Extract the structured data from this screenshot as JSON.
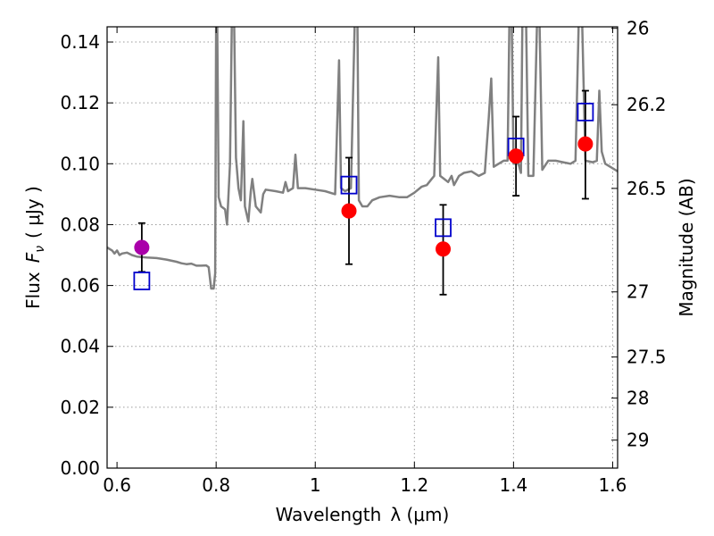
{
  "chart_data": {
    "type": "scatter",
    "title": "",
    "xlabel": "Wavelength",
    "xlabel_math": "λ (μm)",
    "ylabel": "Flux",
    "ylabel_math": "F",
    "ylabel_sub": "ν",
    "ylabel_unit": "( μJy )",
    "y2label": "Magnitude (AB)",
    "xlim": [
      0.58,
      1.61
    ],
    "ylim": [
      0.0,
      0.145
    ],
    "grid": true,
    "x_ticks": [
      0.6,
      0.8,
      1.0,
      1.2,
      1.4,
      1.6
    ],
    "x_tick_labels": [
      "0.6",
      "0.8",
      "1",
      "1.2",
      "1.4",
      "1.6"
    ],
    "y_ticks": [
      0.0,
      0.02,
      0.04,
      0.06,
      0.08,
      0.1,
      0.12,
      0.14
    ],
    "y_tick_labels": [
      "0.00",
      "0.02",
      "0.04",
      "0.06",
      "0.08",
      "0.10",
      "0.12",
      "0.14"
    ],
    "y2_ticks": [
      {
        "flux": 0.1445,
        "label": "26"
      },
      {
        "flux": 0.1194,
        "label": "26.2"
      },
      {
        "flux": 0.0919,
        "label": "26.5"
      },
      {
        "flux": 0.0579,
        "label": "27"
      },
      {
        "flux": 0.0365,
        "label": "27.5"
      },
      {
        "flux": 0.023,
        "label": "28"
      },
      {
        "flux": 0.0092,
        "label": "29"
      }
    ],
    "colors": {
      "model": "#808080",
      "observed": "#ff0000",
      "observed_alt": "#aa00aa",
      "model_photometry": "#0000cc",
      "errorbar": "#000000",
      "grid": "#9a9a9a"
    },
    "series": [
      {
        "name": "model spectrum",
        "kind": "line",
        "points": [
          [
            0.58,
            0.0725
          ],
          [
            0.59,
            0.0715
          ],
          [
            0.595,
            0.0705
          ],
          [
            0.6,
            0.0715
          ],
          [
            0.605,
            0.07
          ],
          [
            0.61,
            0.0705
          ],
          [
            0.62,
            0.0708
          ],
          [
            0.63,
            0.07
          ],
          [
            0.64,
            0.0695
          ],
          [
            0.66,
            0.0692
          ],
          [
            0.68,
            0.069
          ],
          [
            0.7,
            0.0685
          ],
          [
            0.72,
            0.0678
          ],
          [
            0.73,
            0.0673
          ],
          [
            0.74,
            0.067
          ],
          [
            0.75,
            0.0672
          ],
          [
            0.76,
            0.0665
          ],
          [
            0.77,
            0.0665
          ],
          [
            0.78,
            0.0666
          ],
          [
            0.785,
            0.066
          ],
          [
            0.79,
            0.059
          ],
          [
            0.795,
            0.059
          ],
          [
            0.798,
            0.064
          ],
          [
            0.8,
            0.15
          ],
          [
            0.802,
            0.15
          ],
          [
            0.805,
            0.089
          ],
          [
            0.81,
            0.086
          ],
          [
            0.818,
            0.085
          ],
          [
            0.822,
            0.08
          ],
          [
            0.828,
            0.1
          ],
          [
            0.832,
            0.15
          ],
          [
            0.836,
            0.15
          ],
          [
            0.84,
            0.102
          ],
          [
            0.845,
            0.092
          ],
          [
            0.85,
            0.088
          ],
          [
            0.855,
            0.114
          ],
          [
            0.858,
            0.086
          ],
          [
            0.865,
            0.081
          ],
          [
            0.87,
            0.091
          ],
          [
            0.873,
            0.095
          ],
          [
            0.88,
            0.086
          ],
          [
            0.89,
            0.084
          ],
          [
            0.895,
            0.09
          ],
          [
            0.9,
            0.0915
          ],
          [
            0.92,
            0.091
          ],
          [
            0.935,
            0.0905
          ],
          [
            0.94,
            0.094
          ],
          [
            0.945,
            0.091
          ],
          [
            0.955,
            0.092
          ],
          [
            0.96,
            0.103
          ],
          [
            0.965,
            0.092
          ],
          [
            0.98,
            0.092
          ],
          [
            1.0,
            0.0915
          ],
          [
            1.02,
            0.091
          ],
          [
            1.04,
            0.09
          ],
          [
            1.048,
            0.134
          ],
          [
            1.052,
            0.092
          ],
          [
            1.06,
            0.091
          ],
          [
            1.072,
            0.092
          ],
          [
            1.08,
            0.15
          ],
          [
            1.085,
            0.15
          ],
          [
            1.088,
            0.088
          ],
          [
            1.095,
            0.086
          ],
          [
            1.105,
            0.086
          ],
          [
            1.115,
            0.088
          ],
          [
            1.13,
            0.089
          ],
          [
            1.15,
            0.0895
          ],
          [
            1.17,
            0.089
          ],
          [
            1.185,
            0.089
          ],
          [
            1.2,
            0.0905
          ],
          [
            1.215,
            0.0925
          ],
          [
            1.225,
            0.093
          ],
          [
            1.235,
            0.095
          ],
          [
            1.24,
            0.096
          ],
          [
            1.248,
            0.135
          ],
          [
            1.252,
            0.096
          ],
          [
            1.26,
            0.095
          ],
          [
            1.268,
            0.094
          ],
          [
            1.275,
            0.096
          ],
          [
            1.28,
            0.093
          ],
          [
            1.29,
            0.096
          ],
          [
            1.3,
            0.097
          ],
          [
            1.315,
            0.0975
          ],
          [
            1.33,
            0.096
          ],
          [
            1.342,
            0.097
          ],
          [
            1.35,
            0.115
          ],
          [
            1.355,
            0.128
          ],
          [
            1.36,
            0.099
          ],
          [
            1.37,
            0.1
          ],
          [
            1.38,
            0.101
          ],
          [
            1.388,
            0.101
          ],
          [
            1.392,
            0.15
          ],
          [
            1.396,
            0.15
          ],
          [
            1.4,
            0.1
          ],
          [
            1.41,
            0.1
          ],
          [
            1.415,
            0.097
          ],
          [
            1.418,
            0.15
          ],
          [
            1.425,
            0.15
          ],
          [
            1.43,
            0.096
          ],
          [
            1.44,
            0.096
          ],
          [
            1.448,
            0.15
          ],
          [
            1.452,
            0.15
          ],
          [
            1.458,
            0.098
          ],
          [
            1.47,
            0.101
          ],
          [
            1.485,
            0.101
          ],
          [
            1.5,
            0.1005
          ],
          [
            1.515,
            0.1
          ],
          [
            1.525,
            0.101
          ],
          [
            1.532,
            0.15
          ],
          [
            1.538,
            0.15
          ],
          [
            1.545,
            0.101
          ],
          [
            1.56,
            0.1005
          ],
          [
            1.568,
            0.101
          ],
          [
            1.573,
            0.124
          ],
          [
            1.578,
            0.104
          ],
          [
            1.585,
            0.1
          ],
          [
            1.595,
            0.099
          ],
          [
            1.605,
            0.098
          ],
          [
            1.61,
            0.0975
          ]
        ]
      },
      {
        "name": "model photometry",
        "kind": "open-square",
        "points": [
          [
            0.65,
            0.0615
          ],
          [
            1.068,
            0.093
          ],
          [
            1.258,
            0.079
          ],
          [
            1.405,
            0.1055
          ],
          [
            1.545,
            0.117
          ]
        ]
      },
      {
        "name": "observed photometry",
        "kind": "filled-circle",
        "points": [
          {
            "x": 0.65,
            "y": 0.0725,
            "err_low": 0.008,
            "err_high": 0.008,
            "alt": true
          },
          {
            "x": 1.068,
            "y": 0.0845,
            "err_low": 0.0175,
            "err_high": 0.0175
          },
          {
            "x": 1.258,
            "y": 0.072,
            "err_low": 0.015,
            "err_high": 0.0145
          },
          {
            "x": 1.405,
            "y": 0.1025,
            "err_low": 0.013,
            "err_high": 0.013
          },
          {
            "x": 1.545,
            "y": 0.1065,
            "err_low": 0.018,
            "err_high": 0.0175
          }
        ]
      }
    ]
  }
}
